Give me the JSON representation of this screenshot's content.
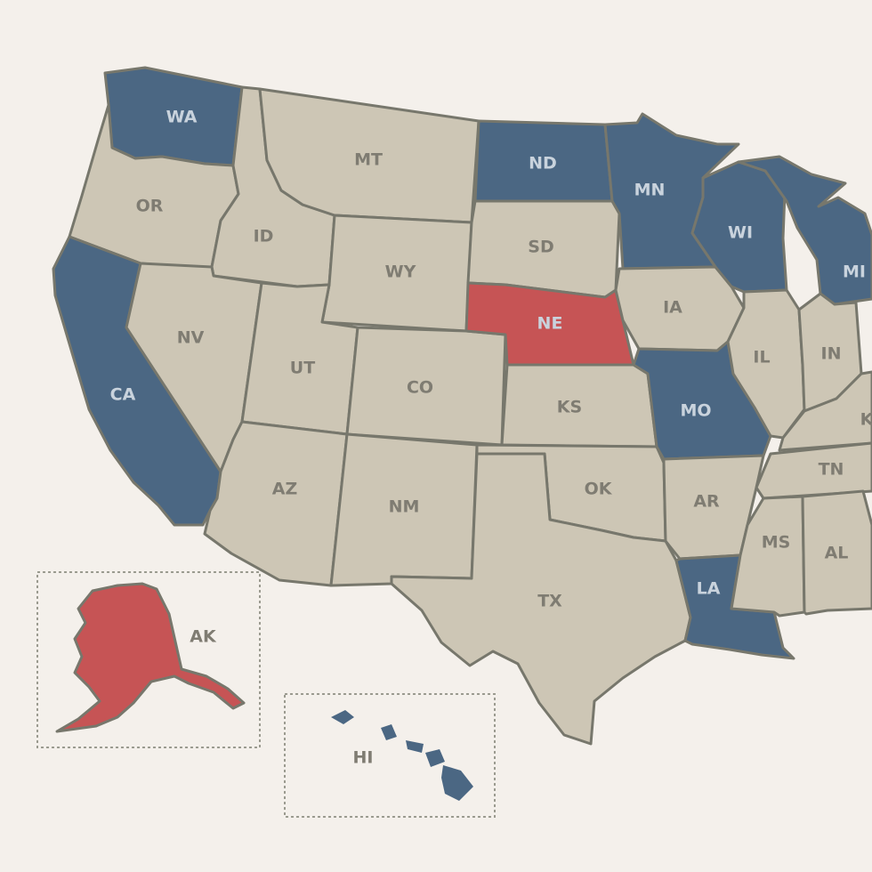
{
  "colors": {
    "background": "#f4f0eb",
    "neutral": "#cdc6b5",
    "blue": "#4b6783",
    "red": "#c65455",
    "label_light": "#c9d3dd",
    "label_neutral": "#7f7c72",
    "border": "#77776c"
  },
  "states": {
    "WA": {
      "label": "WA",
      "group": "blue"
    },
    "OR": {
      "label": "OR",
      "group": "neutral"
    },
    "CA": {
      "label": "CA",
      "group": "blue"
    },
    "ID": {
      "label": "ID",
      "group": "neutral"
    },
    "NV": {
      "label": "NV",
      "group": "neutral"
    },
    "MT": {
      "label": "MT",
      "group": "neutral"
    },
    "WY": {
      "label": "WY",
      "group": "neutral"
    },
    "UT": {
      "label": "UT",
      "group": "neutral"
    },
    "AZ": {
      "label": "AZ",
      "group": "neutral"
    },
    "CO": {
      "label": "CO",
      "group": "neutral"
    },
    "NM": {
      "label": "NM",
      "group": "neutral"
    },
    "ND": {
      "label": "ND",
      "group": "blue"
    },
    "SD": {
      "label": "SD",
      "group": "neutral"
    },
    "NE": {
      "label": "NE",
      "group": "red"
    },
    "KS": {
      "label": "KS",
      "group": "neutral"
    },
    "OK": {
      "label": "OK",
      "group": "neutral"
    },
    "TX": {
      "label": "TX",
      "group": "neutral"
    },
    "MN": {
      "label": "MN",
      "group": "blue"
    },
    "IA": {
      "label": "IA",
      "group": "neutral"
    },
    "MO": {
      "label": "MO",
      "group": "blue"
    },
    "AR": {
      "label": "AR",
      "group": "neutral"
    },
    "LA": {
      "label": "LA",
      "group": "blue"
    },
    "WI": {
      "label": "WI",
      "group": "blue"
    },
    "IL": {
      "label": "IL",
      "group": "neutral"
    },
    "MI": {
      "label": "MI",
      "group": "blue"
    },
    "IN": {
      "label": "IN",
      "group": "neutral"
    },
    "KY": {
      "label": "K",
      "group": "neutral"
    },
    "TN": {
      "label": "TN",
      "group": "neutral"
    },
    "MS": {
      "label": "MS",
      "group": "neutral"
    },
    "AL": {
      "label": "AL",
      "group": "neutral"
    },
    "AK": {
      "label": "AK",
      "group": "red"
    },
    "HI": {
      "label": "HI",
      "group": "blue"
    }
  }
}
